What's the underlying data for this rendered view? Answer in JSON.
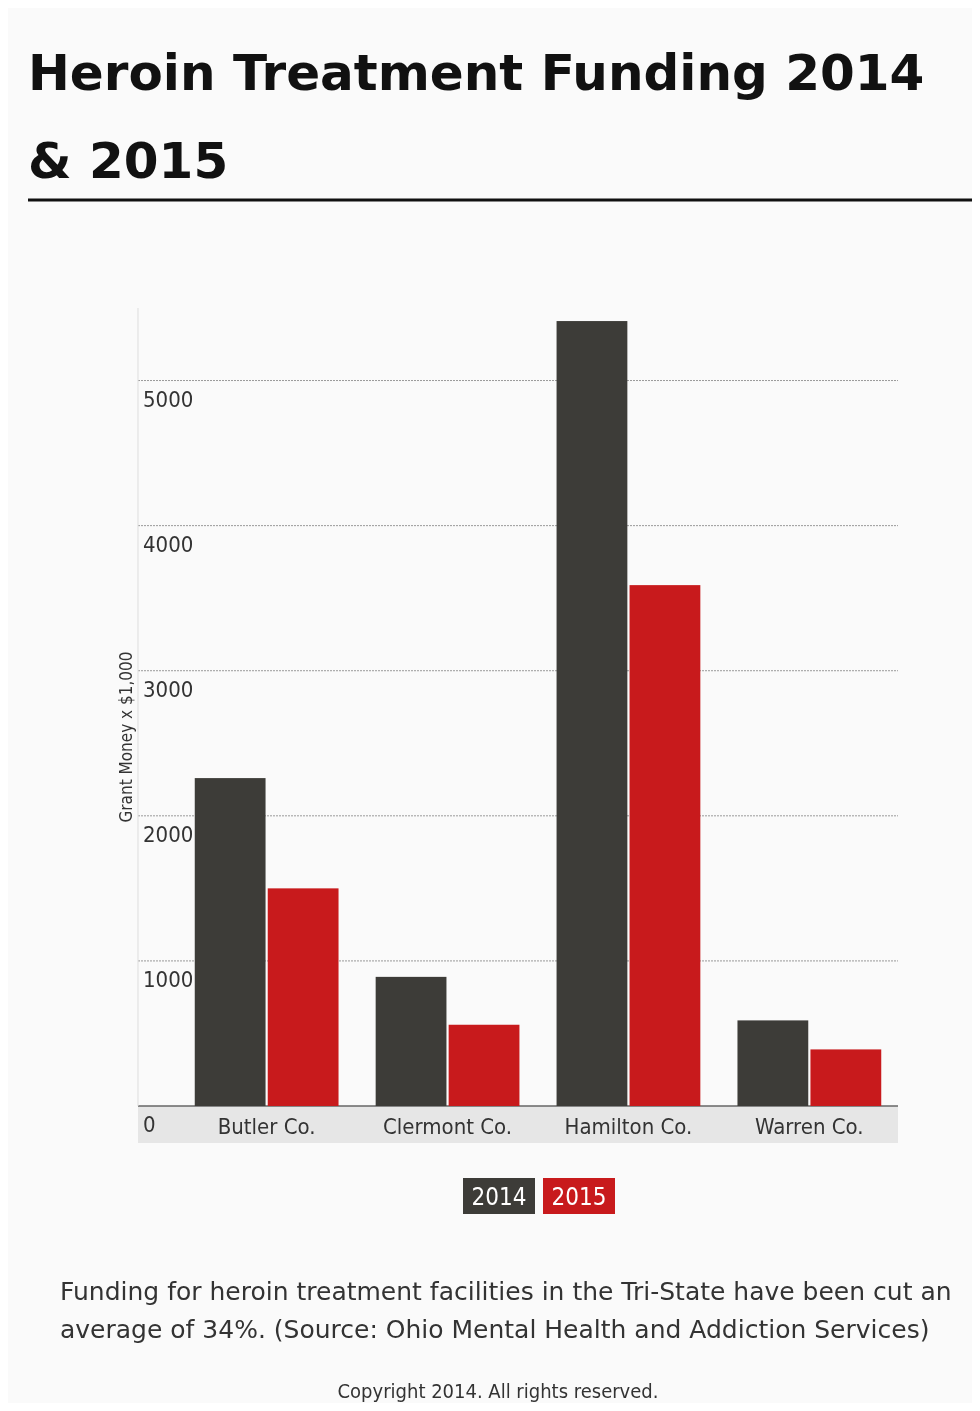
{
  "chart_data": {
    "type": "bar",
    "title": "Heroin Treatment Funding 2014 & 2015",
    "ylabel": "Grant Money x $1,000",
    "categories": [
      "Butler Co.",
      "Clermont Co.",
      "Hamilton Co.",
      "Warren Co."
    ],
    "series": [
      {
        "name": "2014",
        "color": "#3d3c38",
        "values": [
          2260,
          890,
          5410,
          590
        ]
      },
      {
        "name": "2015",
        "color": "#c81a1c",
        "values": [
          1500,
          560,
          3590,
          390
        ]
      }
    ],
    "ylim": [
      0,
      5500
    ],
    "yticks": [
      0,
      1000,
      2000,
      3000,
      4000,
      5000
    ],
    "grid": "y",
    "legend": "bottom",
    "annotations": [
      "Funding for heroin treatment facilities in the Tri-State have been cut an average of 34%. (Source: Ohio Mental Health and Addiction Services)",
      "Copyright 2014. All rights reserved."
    ]
  }
}
